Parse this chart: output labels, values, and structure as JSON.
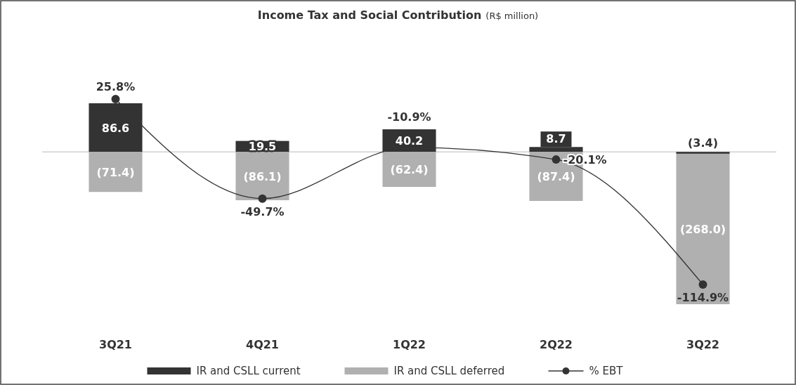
{
  "chart_data": {
    "type": "bar",
    "title": "Income Tax and Social Contribution",
    "subtitle": "(R$ million)",
    "categories": [
      "3Q21",
      "4Q21",
      "1Q22",
      "2Q22",
      "3Q22"
    ],
    "stacked": true,
    "tick_labels": "x",
    "legend": "bottom",
    "data_labels": true,
    "marker": "circle",
    "line_style": "solid",
    "series": [
      {
        "name": "IR and CSLL current",
        "color": "#333333",
        "values": [
          86.6,
          19.5,
          40.2,
          8.7,
          -3.4
        ],
        "value_labels": [
          "86.6",
          "19.5",
          "40.2",
          "8.7",
          "(3.4)"
        ]
      },
      {
        "name": "IR and CSLL deferred",
        "color": "#b0b0b0",
        "values": [
          -71.4,
          -86.1,
          -62.4,
          -87.4,
          -268.0
        ],
        "value_labels": [
          "(71.4)",
          "(86.1)",
          "(62.4)",
          "(87.4)",
          "(268.0)"
        ]
      },
      {
        "name": "% EBT",
        "type": "line",
        "axis": "y2",
        "color": "#333333",
        "values": [
          25.8,
          -49.7,
          -10.9,
          -20.1,
          -114.9
        ],
        "value_labels": [
          "25.8%",
          "-49.7%",
          "-10.9%",
          "-20.1%",
          "-114.9%"
        ]
      }
    ]
  }
}
